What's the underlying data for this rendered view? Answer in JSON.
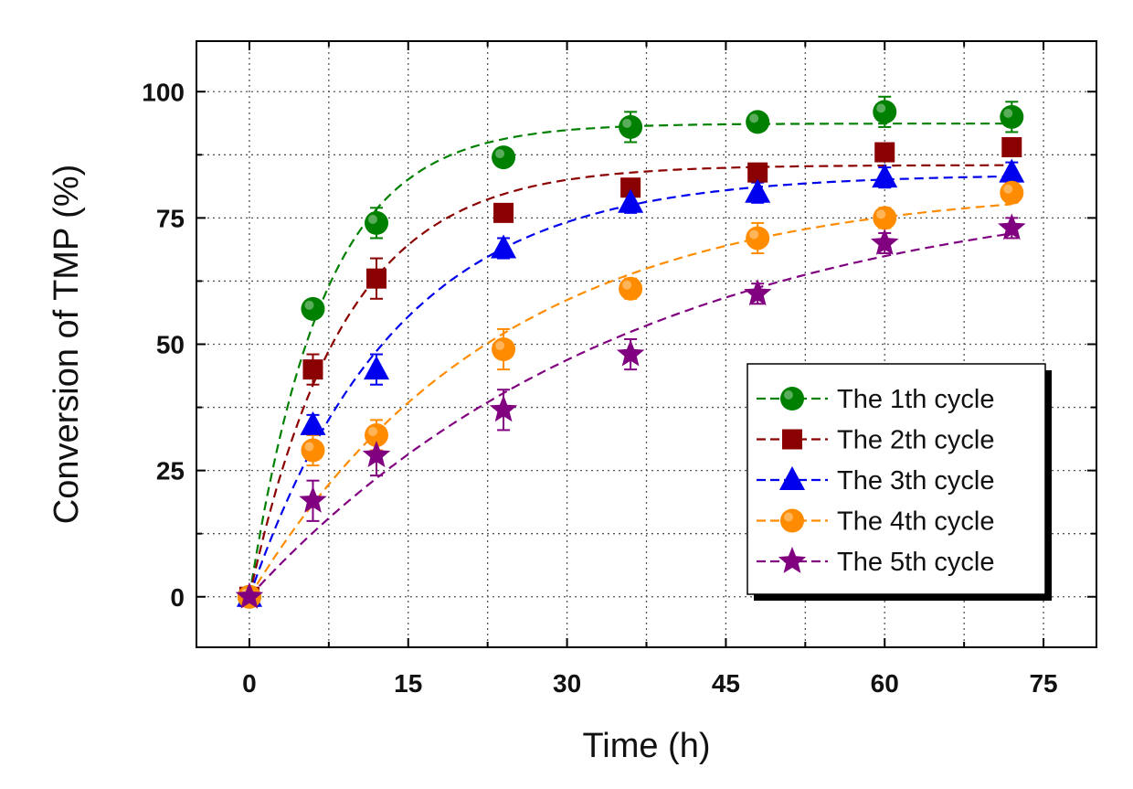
{
  "chart_data": {
    "type": "line",
    "title": "",
    "xlabel": "Time (h)",
    "ylabel": "Conversion of TMP (%)",
    "xlim": [
      -5,
      80
    ],
    "ylim": [
      -10,
      110
    ],
    "xticks": [
      0,
      15,
      30,
      45,
      60,
      75
    ],
    "yticks": [
      0,
      25,
      50,
      75,
      100
    ],
    "grid": true,
    "legend_position": "bottom-right",
    "x": [
      0,
      6,
      12,
      24,
      36,
      48,
      60,
      72
    ],
    "series": [
      {
        "name": "The 1th cycle",
        "color": "#008000",
        "marker": "circle",
        "values": [
          0,
          57,
          74,
          87,
          93,
          94,
          96,
          95
        ],
        "errors": [
          0,
          1,
          3,
          1.5,
          3,
          1,
          3,
          3
        ]
      },
      {
        "name": "The 2th cycle",
        "color": "#8b0000",
        "marker": "square",
        "values": [
          0,
          45,
          63,
          76,
          81,
          84,
          88,
          89
        ],
        "errors": [
          0,
          3,
          4,
          1,
          1,
          1,
          1,
          1
        ]
      },
      {
        "name": "The 3th cycle",
        "color": "#0000ee",
        "marker": "triangle",
        "values": [
          0,
          34,
          45,
          69,
          78,
          80,
          83,
          84
        ],
        "errors": [
          0,
          2,
          3,
          2,
          2,
          2,
          2,
          2
        ]
      },
      {
        "name": "The 4th cycle",
        "color": "#ff8c00",
        "marker": "circle",
        "values": [
          0,
          29,
          32,
          49,
          61,
          71,
          75,
          80
        ],
        "errors": [
          0,
          3,
          3,
          4,
          2,
          3,
          2,
          2
        ]
      },
      {
        "name": "The 5th cycle",
        "color": "#800080",
        "marker": "star",
        "values": [
          0,
          19,
          28,
          37,
          48,
          60,
          70,
          73
        ],
        "errors": [
          0,
          4,
          4,
          4,
          3,
          2,
          2,
          2
        ]
      }
    ]
  }
}
